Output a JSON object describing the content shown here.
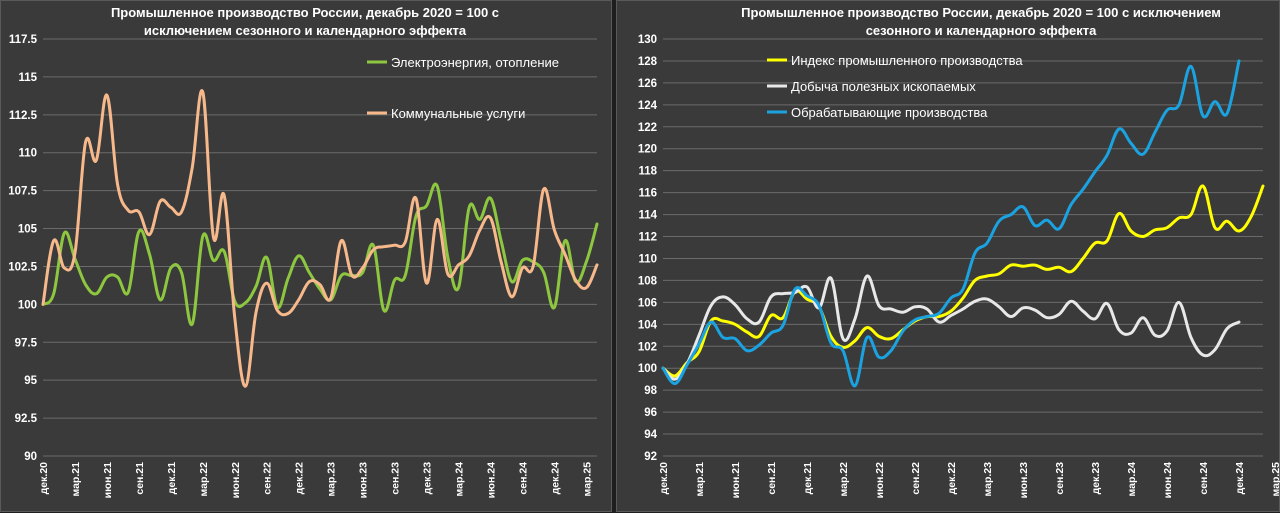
{
  "chart_data": [
    {
      "type": "line",
      "title": [
        "Промышленное производство России, декабрь 2020 = 100 с",
        "исключением сезонного и календарного эффекта"
      ],
      "xlabel": "",
      "ylabel": "",
      "ylim": [
        90,
        117.5
      ],
      "yticks": [
        "117.5",
        "115",
        "112.5",
        "110",
        "107.5",
        "105",
        "102.5",
        "100",
        "97.5",
        "95",
        "92.5",
        "90"
      ],
      "xticks": [
        "дек.20",
        "мар.21",
        "июн.21",
        "сен.21",
        "дек.21",
        "мар.22",
        "июн.22",
        "сен.22",
        "дек.22",
        "мар.23",
        "июн.23",
        "сен.23",
        "дек.23",
        "мар.24",
        "июн.24",
        "сен.24",
        "дек.24",
        "мар.25"
      ],
      "grid": true,
      "legend": "top-right",
      "series": [
        {
          "name": "Электроэнергия, отопление",
          "color": "#8dc63f",
          "values": [
            100,
            100.7,
            104.7,
            103.0,
            101.3,
            100.7,
            101.8,
            101.8,
            100.8,
            104.8,
            103.3,
            100.3,
            102.4,
            102.1,
            98.7,
            104.5,
            102.9,
            103.5,
            100.2,
            100.1,
            101.2,
            103.1,
            99.8,
            101.7,
            103.2,
            102.1,
            101.0,
            100.3,
            101.9,
            101.9,
            102.1,
            103.9,
            99.6,
            101.6,
            101.9,
            105.8,
            106.5,
            107.8,
            103.1,
            101.1,
            106.4,
            105.6,
            107.0,
            104.2,
            101.5,
            102.9,
            102.8,
            102.1,
            99.8,
            104.2,
            101.5,
            102.8,
            105.3
          ]
        },
        {
          "name": "Коммунальные услуги",
          "color": "#f7b98b",
          "values": [
            100,
            104.2,
            102.4,
            103.4,
            110.7,
            109.5,
            113.8,
            107.9,
            106.2,
            106.1,
            104.6,
            106.8,
            106.4,
            106.1,
            109.0,
            114.0,
            104.4,
            107.2,
            99.1,
            94.6,
            99.5,
            101.4,
            99.6,
            99.4,
            100.3,
            101.5,
            101.3,
            100.4,
            104.2,
            101.9,
            102.4,
            103.6,
            103.8,
            103.9,
            104.1,
            107.0,
            101.4,
            105.6,
            102.0,
            102.6,
            103.2,
            104.9,
            105.7,
            102.8,
            100.5,
            102.4,
            102.5,
            107.6,
            104.9,
            103.3,
            101.6,
            101.1,
            102.6
          ]
        }
      ]
    },
    {
      "type": "line",
      "title": [
        "Промышленное производство России, декабрь 2020 = 100 с исключением",
        "сезонного и календарного эффекта"
      ],
      "xlabel": "",
      "ylabel": "",
      "ylim": [
        92,
        130
      ],
      "yticks": [
        "130",
        "128",
        "126",
        "124",
        "122",
        "120",
        "118",
        "116",
        "114",
        "112",
        "110",
        "108",
        "106",
        "104",
        "102",
        "100",
        "98",
        "96",
        "94",
        "92"
      ],
      "xticks": [
        "дек.20",
        "мар.21",
        "июн.21",
        "сен.21",
        "дек.21",
        "мар.22",
        "июн.22",
        "сен.22",
        "дек.22",
        "мар.23",
        "июн.23",
        "сен.23",
        "дек.23",
        "мар.24",
        "июн.24",
        "сен.24",
        "дек.24",
        "мар.25"
      ],
      "grid": true,
      "legend": "top-left",
      "series": [
        {
          "name": "Индекс промышленного производства",
          "color": "#ffff00",
          "values": [
            100,
            99.3,
            100.5,
            101.5,
            104.3,
            104.3,
            104.0,
            103.3,
            102.9,
            104.8,
            104.6,
            107.0,
            106.3,
            105.6,
            102.9,
            101.9,
            102.5,
            103.7,
            102.9,
            102.7,
            103.5,
            104.3,
            104.7,
            104.7,
            105.2,
            106.4,
            108.0,
            108.4,
            108.6,
            109.4,
            109.3,
            109.4,
            109.0,
            109.2,
            108.8,
            110.0,
            111.4,
            111.6,
            114.1,
            112.5,
            112.0,
            112.6,
            112.8,
            113.7,
            114.0,
            116.6,
            112.8,
            113.4,
            112.5,
            113.8,
            116.6
          ]
        },
        {
          "name": "Добыча полезных ископаемых",
          "color": "#e8e8e8",
          "values": [
            100,
            99.0,
            100.4,
            103.0,
            105.7,
            106.5,
            105.8,
            104.5,
            104.2,
            106.5,
            106.8,
            106.9,
            107.4,
            105.5,
            108.2,
            102.7,
            104.5,
            108.4,
            105.7,
            105.4,
            105.1,
            105.6,
            105.4,
            104.2,
            104.8,
            105.4,
            106.1,
            106.3,
            105.6,
            104.7,
            105.5,
            105.3,
            104.6,
            104.9,
            106.1,
            105.2,
            104.5,
            105.9,
            103.5,
            103.2,
            104.6,
            103.0,
            103.4,
            106.0,
            102.8,
            101.2,
            101.7,
            103.6,
            104.2
          ]
        },
        {
          "name": "Обрабатывающие производства",
          "color": "#1aa3e0",
          "values": [
            100,
            98.6,
            100.3,
            102.2,
            104.2,
            102.8,
            102.7,
            101.6,
            102.1,
            103.2,
            103.9,
            107.2,
            106.6,
            105.7,
            102.3,
            101.6,
            98.4,
            102.8,
            101.0,
            101.6,
            103.4,
            104.4,
            104.7,
            105.0,
            106.4,
            107.2,
            110.5,
            111.4,
            113.4,
            114.0,
            114.7,
            113.0,
            113.5,
            112.7,
            114.9,
            116.3,
            117.9,
            119.4,
            121.8,
            120.5,
            119.5,
            121.5,
            123.5,
            124.0,
            127.5,
            123.0,
            124.3,
            123.2,
            128.0
          ]
        }
      ]
    }
  ]
}
